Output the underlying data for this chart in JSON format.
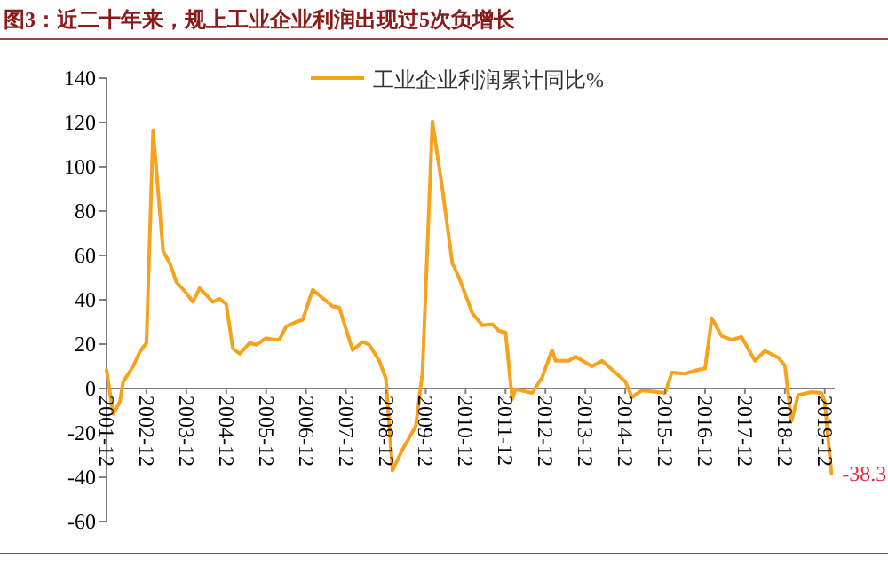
{
  "chart_data": {
    "type": "line",
    "title": "图3：近二十年来，规上工业企业利润出现过5次负增长",
    "x": [
      "2001-12",
      "2002-02",
      "2002-04",
      "2002-05",
      "2002-08",
      "2002-10",
      "2002-12",
      "2003-02",
      "2003-05",
      "2003-07",
      "2003-08",
      "2003-09",
      "2003-12",
      "2004-02",
      "2004-04",
      "2004-08",
      "2004-10",
      "2004-12",
      "2005-02",
      "2005-04",
      "2005-07",
      "2005-09",
      "2005-12",
      "2006-02",
      "2006-04",
      "2006-06",
      "2006-09",
      "2006-11",
      "2007-02",
      "2007-04",
      "2007-08",
      "2007-10",
      "2008-02",
      "2008-05",
      "2008-07",
      "2008-10",
      "2008-12",
      "2009-02",
      "2009-05",
      "2009-09",
      "2009-11",
      "2010-02",
      "2010-05",
      "2010-08",
      "2010-10",
      "2011-02",
      "2011-05",
      "2011-08",
      "2011-10",
      "2011-12",
      "2012-02",
      "2012-03",
      "2012-08",
      "2012-11",
      "2013-02",
      "2013-03",
      "2013-07",
      "2013-09",
      "2014-02",
      "2014-05",
      "2014-09",
      "2014-12",
      "2015-02",
      "2015-05",
      "2015-12",
      "2016-02",
      "2016-06",
      "2016-10",
      "2016-12",
      "2017-02",
      "2017-05",
      "2017-08",
      "2017-11",
      "2017-12",
      "2018-03",
      "2018-06",
      "2018-10",
      "2018-12",
      "2019-02",
      "2019-04",
      "2019-08",
      "2019-11",
      "2019-12",
      "2020-02"
    ],
    "series": [
      {
        "name": "工业企业利润累计同比%",
        "color": "#f7a21b",
        "values": [
          8.5,
          -11.5,
          -6,
          3,
          10,
          16.5,
          20.5,
          116.5,
          62,
          56.5,
          52.5,
          48,
          43,
          39,
          45.3,
          39,
          40.5,
          38,
          18,
          15.7,
          20.5,
          19.7,
          22.7,
          22,
          22,
          28,
          30,
          31,
          44.5,
          42,
          37,
          36.5,
          17.3,
          21,
          19.7,
          12.5,
          4.5,
          -37,
          -27.5,
          -17,
          7,
          120.5,
          90,
          56.5,
          50,
          34,
          28.5,
          29,
          26,
          25.3,
          -4.8,
          -0.3,
          -2,
          5,
          17.3,
          12.5,
          12.5,
          14.4,
          10,
          12.5,
          7.2,
          3.2,
          -4,
          -0.8,
          -2,
          7.2,
          6.7,
          8.5,
          9,
          31.7,
          23.7,
          22,
          23.2,
          20.5,
          12.5,
          17,
          13.9,
          10.4,
          -14.7,
          -3,
          -1.6,
          -2,
          -6,
          -38.3
        ],
        "value_labels": [
          null,
          null,
          null,
          null,
          null,
          null,
          null,
          null,
          null,
          null,
          null,
          null,
          null,
          null,
          null,
          null,
          null,
          null,
          null,
          null,
          null,
          null,
          null,
          null,
          null,
          null,
          null,
          null,
          null,
          null,
          null,
          null,
          null,
          null,
          null,
          null,
          null,
          null,
          null,
          null,
          null,
          null,
          null,
          null,
          null,
          null,
          null,
          null,
          null,
          null,
          null,
          null,
          null,
          null,
          null,
          null,
          null,
          null,
          null,
          null,
          null,
          null,
          null,
          null,
          null,
          null,
          null,
          null,
          null,
          null,
          null,
          null,
          null,
          null,
          null,
          null,
          null,
          null,
          null,
          null,
          null,
          null,
          null,
          "-38.3"
        ]
      }
    ],
    "xlim": [
      "2001-12",
      "2020-03"
    ],
    "xticks": [
      "2001-12",
      "2002-12",
      "2003-12",
      "2004-12",
      "2005-12",
      "2006-12",
      "2007-12",
      "2008-12",
      "2009-12",
      "2010-12",
      "2011-12",
      "2012-12",
      "2013-12",
      "2014-12",
      "2015-12",
      "2016-12",
      "2017-12",
      "2018-12",
      "2019-12"
    ],
    "ylim": [
      -60,
      140
    ],
    "yticks": [
      -60,
      -40,
      -20,
      0,
      20,
      40,
      60,
      80,
      100,
      120,
      140
    ],
    "legend": "top",
    "grid": false
  }
}
